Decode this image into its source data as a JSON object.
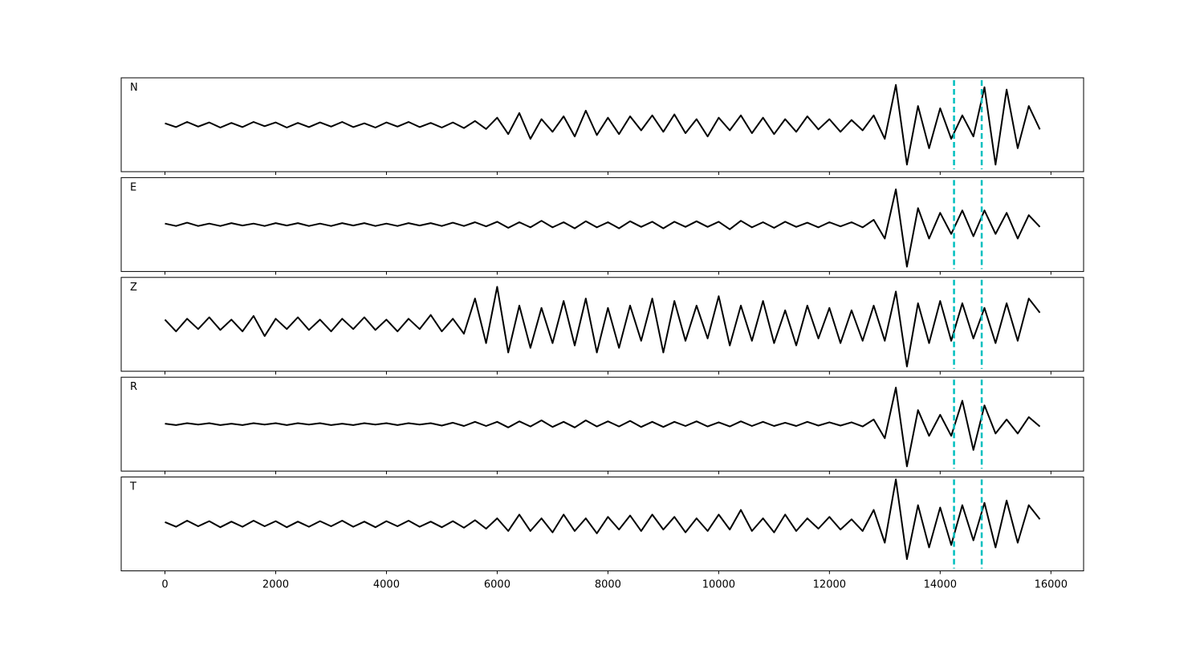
{
  "chart_data": {
    "type": "line",
    "x": [
      0,
      200,
      400,
      600,
      800,
      1000,
      1200,
      1400,
      1600,
      1800,
      2000,
      2200,
      2400,
      2600,
      2800,
      3000,
      3200,
      3400,
      3600,
      3800,
      4000,
      4200,
      4400,
      4600,
      4800,
      5000,
      5200,
      5400,
      5600,
      5800,
      6000,
      6200,
      6400,
      6600,
      6800,
      7000,
      7200,
      7400,
      7600,
      7800,
      8000,
      8200,
      8400,
      8600,
      8800,
      9000,
      9200,
      9400,
      9600,
      9800,
      10000,
      10200,
      10400,
      10600,
      10800,
      11000,
      11200,
      11400,
      11600,
      11800,
      12000,
      12200,
      12400,
      12600,
      12800,
      13000,
      13200,
      13400,
      13600,
      13800,
      14000,
      14200,
      14400,
      14600,
      14800,
      15000,
      15200,
      15400,
      15600,
      15800
    ],
    "xlim": [
      -790,
      16590
    ],
    "xticks": [
      0,
      2000,
      4000,
      6000,
      8000,
      10000,
      12000,
      14000,
      16000
    ],
    "ylim": [
      -1,
      1
    ],
    "line_color": "#000000",
    "vlines": [
      14250,
      14750
    ],
    "vline_color": "#00bfbf",
    "series": [
      {
        "name": "N",
        "values": [
          0.03,
          -0.05,
          0.06,
          -0.04,
          0.05,
          -0.06,
          0.04,
          -0.05,
          0.06,
          -0.03,
          0.05,
          -0.06,
          0.04,
          -0.05,
          0.05,
          -0.04,
          0.06,
          -0.05,
          0.03,
          -0.06,
          0.05,
          -0.04,
          0.06,
          -0.05,
          0.04,
          -0.06,
          0.05,
          -0.07,
          0.08,
          -0.09,
          0.15,
          -0.2,
          0.25,
          -0.3,
          0.12,
          -0.15,
          0.18,
          -0.25,
          0.3,
          -0.22,
          0.15,
          -0.2,
          0.18,
          -0.12,
          0.2,
          -0.15,
          0.22,
          -0.18,
          0.12,
          -0.25,
          0.15,
          -0.12,
          0.2,
          -0.18,
          0.15,
          -0.2,
          0.12,
          -0.15,
          0.18,
          -0.1,
          0.12,
          -0.15,
          0.1,
          -0.12,
          0.2,
          -0.3,
          0.85,
          -0.85,
          0.4,
          -0.5,
          0.35,
          -0.3,
          0.2,
          -0.25,
          0.8,
          -0.85,
          0.75,
          -0.5,
          0.4,
          -0.1
        ]
      },
      {
        "name": "E",
        "values": [
          0.02,
          -0.03,
          0.04,
          -0.03,
          0.02,
          -0.03,
          0.03,
          -0.02,
          0.02,
          -0.03,
          0.03,
          -0.02,
          0.03,
          -0.03,
          0.02,
          -0.03,
          0.03,
          -0.02,
          0.03,
          -0.03,
          0.02,
          -0.03,
          0.03,
          -0.02,
          0.03,
          -0.03,
          0.04,
          -0.03,
          0.05,
          -0.04,
          0.06,
          -0.07,
          0.05,
          -0.06,
          0.08,
          -0.06,
          0.05,
          -0.08,
          0.07,
          -0.06,
          0.05,
          -0.08,
          0.07,
          -0.05,
          0.06,
          -0.08,
          0.06,
          -0.05,
          0.07,
          -0.05,
          0.06,
          -0.1,
          0.08,
          -0.06,
          0.05,
          -0.07,
          0.06,
          -0.05,
          0.04,
          -0.06,
          0.05,
          -0.04,
          0.05,
          -0.06,
          0.1,
          -0.3,
          0.75,
          -0.9,
          0.35,
          -0.3,
          0.25,
          -0.2,
          0.3,
          -0.25,
          0.3,
          -0.2,
          0.25,
          -0.3,
          0.2,
          -0.05
        ]
      },
      {
        "name": "Z",
        "values": [
          0.1,
          -0.15,
          0.12,
          -0.1,
          0.15,
          -0.12,
          0.1,
          -0.15,
          0.18,
          -0.25,
          0.12,
          -0.1,
          0.15,
          -0.12,
          0.1,
          -0.15,
          0.12,
          -0.1,
          0.15,
          -0.12,
          0.1,
          -0.15,
          0.12,
          -0.1,
          0.2,
          -0.15,
          0.12,
          -0.2,
          0.55,
          -0.4,
          0.8,
          -0.6,
          0.4,
          -0.5,
          0.35,
          -0.4,
          0.5,
          -0.45,
          0.55,
          -0.6,
          0.35,
          -0.5,
          0.4,
          -0.35,
          0.55,
          -0.6,
          0.5,
          -0.35,
          0.4,
          -0.3,
          0.6,
          -0.45,
          0.4,
          -0.35,
          0.5,
          -0.4,
          0.3,
          -0.45,
          0.4,
          -0.3,
          0.35,
          -0.4,
          0.3,
          -0.35,
          0.4,
          -0.35,
          0.7,
          -0.9,
          0.45,
          -0.4,
          0.5,
          -0.35,
          0.45,
          -0.3,
          0.35,
          -0.4,
          0.45,
          -0.35,
          0.55,
          0.25
        ]
      },
      {
        "name": "R",
        "values": [
          0.01,
          -0.02,
          0.02,
          -0.01,
          0.02,
          -0.02,
          0.01,
          -0.02,
          0.02,
          -0.01,
          0.02,
          -0.02,
          0.02,
          -0.01,
          0.02,
          -0.02,
          0.01,
          -0.02,
          0.02,
          -0.01,
          0.02,
          -0.02,
          0.02,
          -0.01,
          0.02,
          -0.03,
          0.03,
          -0.04,
          0.05,
          -0.04,
          0.05,
          -0.07,
          0.06,
          -0.05,
          0.08,
          -0.06,
          0.05,
          -0.07,
          0.08,
          -0.05,
          0.06,
          -0.05,
          0.07,
          -0.06,
          0.05,
          -0.06,
          0.05,
          -0.04,
          0.06,
          -0.05,
          0.04,
          -0.05,
          0.06,
          -0.04,
          0.05,
          -0.04,
          0.03,
          -0.04,
          0.05,
          -0.03,
          0.04,
          -0.03,
          0.04,
          -0.05,
          0.1,
          -0.3,
          0.78,
          -0.9,
          0.3,
          -0.25,
          0.2,
          -0.25,
          0.5,
          -0.55,
          0.4,
          -0.2,
          0.1,
          -0.2,
          0.15,
          -0.05
        ]
      },
      {
        "name": "T",
        "values": [
          0.04,
          -0.06,
          0.07,
          -0.05,
          0.06,
          -0.07,
          0.05,
          -0.06,
          0.07,
          -0.05,
          0.06,
          -0.07,
          0.05,
          -0.06,
          0.06,
          -0.05,
          0.07,
          -0.06,
          0.05,
          -0.07,
          0.06,
          -0.05,
          0.07,
          -0.06,
          0.05,
          -0.07,
          0.06,
          -0.08,
          0.08,
          -0.1,
          0.12,
          -0.15,
          0.2,
          -0.15,
          0.12,
          -0.18,
          0.2,
          -0.15,
          0.12,
          -0.2,
          0.15,
          -0.12,
          0.18,
          -0.15,
          0.2,
          -0.12,
          0.15,
          -0.18,
          0.12,
          -0.15,
          0.2,
          -0.12,
          0.3,
          -0.15,
          0.12,
          -0.18,
          0.2,
          -0.15,
          0.12,
          -0.1,
          0.15,
          -0.12,
          0.1,
          -0.15,
          0.3,
          -0.4,
          0.95,
          -0.75,
          0.4,
          -0.5,
          0.35,
          -0.45,
          0.4,
          -0.35,
          0.45,
          -0.5,
          0.5,
          -0.4,
          0.4,
          0.1
        ]
      }
    ]
  }
}
